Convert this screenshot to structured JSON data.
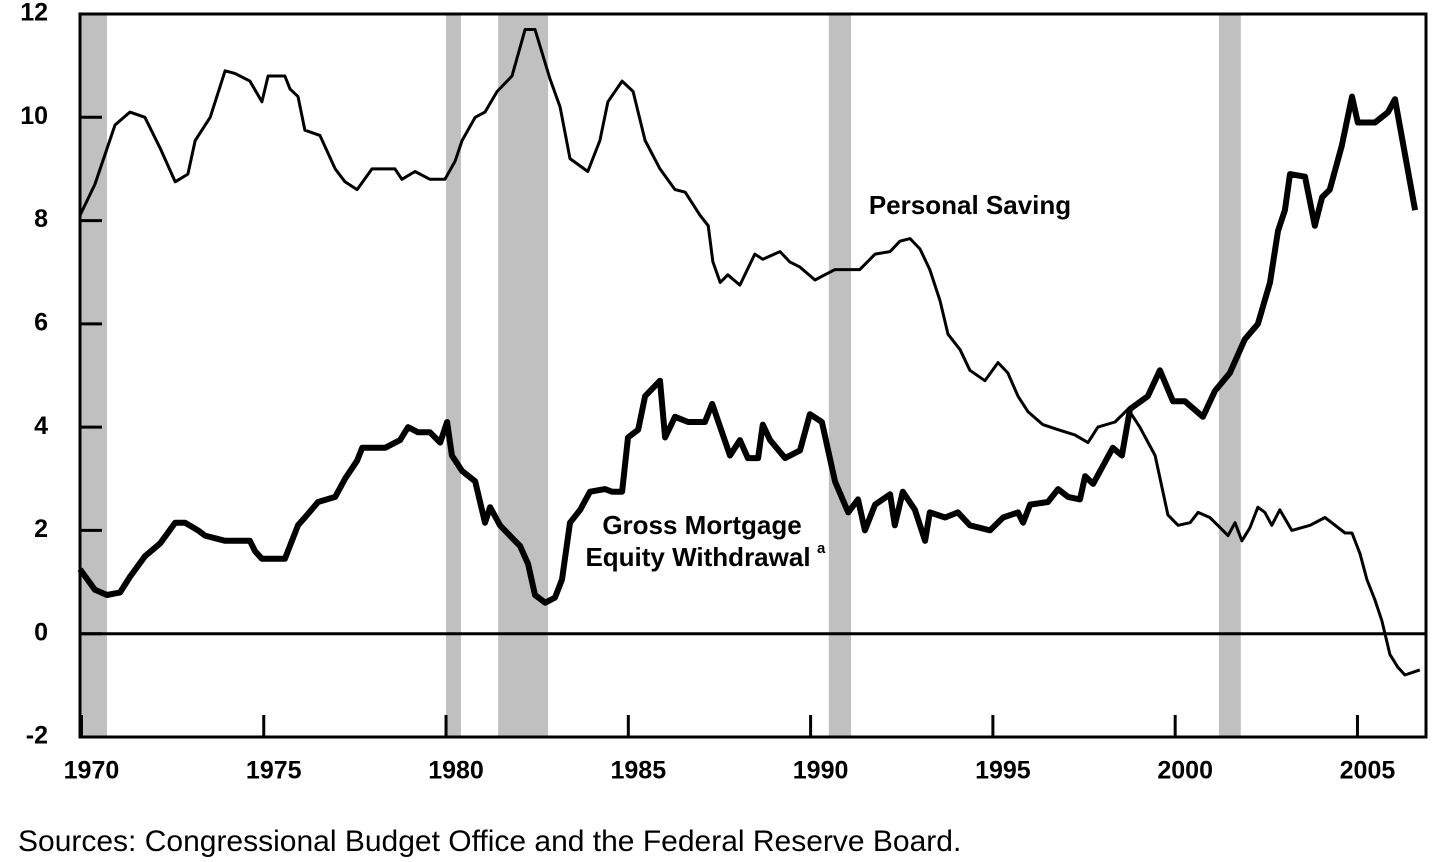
{
  "chart_data": {
    "type": "line",
    "annotations": [
      "Personal Saving",
      "Gross Mortgage",
      "Equity Withdrawal",
      "a"
    ],
    "source": "Sources: Congressional Budget Office and the Federal Reserve Board.",
    "xlim": [
      1969.96,
      2006.88
    ],
    "xticks": [
      1970,
      1975,
      1980,
      1985,
      1990,
      1995,
      2000,
      2005
    ],
    "ylim": [
      -2,
      12
    ],
    "yticks": [
      -2,
      0,
      2,
      4,
      6,
      8,
      10,
      12
    ],
    "grid": false,
    "recessions": [
      [
        1969.96,
        1970.7
      ],
      [
        1980.0,
        1980.41
      ],
      [
        1981.43,
        1982.8
      ],
      [
        1990.5,
        1991.11
      ],
      [
        2001.2,
        2001.8
      ]
    ],
    "recession_color": "#c0c0c0",
    "series": [
      {
        "color": "#000000",
        "width": 3,
        "x": [
          1969.96,
          1970.37,
          1970.92,
          1971.33,
          1971.74,
          1972.16,
          1972.57,
          1972.92,
          1973.12,
          1973.53,
          1973.94,
          1974.21,
          1974.62,
          1974.95,
          1975.12,
          1975.58,
          1975.72,
          1975.94,
          1976.13,
          1976.54,
          1976.96,
          1977.23,
          1977.56,
          1977.97,
          1978.6,
          1978.79,
          1979.15,
          1979.56,
          1979.97,
          1980.25,
          1980.44,
          1980.8,
          1981.07,
          1981.4,
          1981.81,
          1982.17,
          1982.44,
          1982.85,
          1983.13,
          1983.4,
          1983.89,
          1984.22,
          1984.44,
          1984.83,
          1985.13,
          1985.46,
          1985.87,
          1986.28,
          1986.56,
          1986.97,
          1987.19,
          1987.32,
          1987.52,
          1987.73,
          1988.06,
          1988.47,
          1988.69,
          1989.16,
          1989.43,
          1989.71,
          1990.12,
          1990.39,
          1990.67,
          1991.35,
          1991.77,
          1992.18,
          1992.45,
          1992.73,
          1993.0,
          1993.27,
          1993.55,
          1993.77,
          1994.1,
          1994.37,
          1994.78,
          1995.14,
          1995.41,
          1995.69,
          1995.96,
          1996.37,
          1996.79,
          1997.25,
          1997.61,
          1997.88,
          1998.35,
          1998.71,
          1999.03,
          1999.45,
          1999.8,
          2000.08,
          2000.41,
          2000.63,
          2000.95,
          2001.17,
          2001.45,
          2001.64,
          2001.83,
          2002.05,
          2002.27,
          2002.46,
          2002.65,
          2002.87,
          2003.2,
          2003.7,
          2004.11,
          2004.66,
          2004.85,
          2005.07,
          2005.26,
          2005.48,
          2005.67,
          2005.89,
          2006.11,
          2006.3,
          2006.71
        ],
        "values": [
          8.1,
          8.7,
          9.85,
          10.1,
          10.0,
          9.4,
          8.75,
          8.9,
          9.55,
          10.0,
          10.9,
          10.85,
          10.7,
          10.3,
          10.8,
          10.8,
          10.55,
          10.4,
          9.75,
          9.65,
          9.0,
          8.75,
          8.6,
          9.0,
          9.0,
          8.8,
          8.95,
          8.8,
          8.8,
          9.15,
          9.55,
          10.0,
          10.1,
          10.5,
          10.8,
          11.7,
          11.7,
          10.75,
          10.2,
          9.2,
          8.95,
          9.55,
          10.3,
          10.7,
          10.5,
          9.55,
          9.0,
          8.6,
          8.55,
          8.1,
          7.9,
          7.2,
          6.8,
          6.95,
          6.75,
          7.35,
          7.25,
          7.4,
          7.2,
          7.1,
          6.85,
          6.95,
          7.05,
          7.05,
          7.35,
          7.4,
          7.6,
          7.65,
          7.45,
          7.05,
          6.45,
          5.8,
          5.5,
          5.1,
          4.9,
          5.25,
          5.05,
          4.6,
          4.3,
          4.05,
          3.95,
          3.85,
          3.7,
          4.0,
          4.1,
          4.35,
          4.0,
          3.45,
          2.3,
          2.1,
          2.15,
          2.35,
          2.25,
          2.1,
          1.9,
          2.15,
          1.8,
          2.05,
          2.45,
          2.35,
          2.1,
          2.4,
          2.0,
          2.1,
          2.25,
          1.95,
          1.95,
          1.55,
          1.05,
          0.65,
          0.25,
          -0.4,
          -0.65,
          -0.8,
          -0.7
        ]
      },
      {
        "color": "#000000",
        "width": 6,
        "x": [
          1969.96,
          1970.37,
          1970.7,
          1971.06,
          1971.33,
          1971.74,
          1972.16,
          1972.57,
          1972.84,
          1973.2,
          1973.39,
          1973.94,
          1974.62,
          1974.76,
          1974.95,
          1975.58,
          1975.94,
          1976.13,
          1976.49,
          1976.96,
          1977.23,
          1977.56,
          1977.7,
          1978.33,
          1978.74,
          1978.96,
          1979.23,
          1979.56,
          1979.84,
          1980.03,
          1980.16,
          1980.44,
          1980.8,
          1981.07,
          1981.21,
          1981.48,
          1981.89,
          1982.03,
          1982.25,
          1982.44,
          1982.72,
          1982.99,
          1983.18,
          1983.4,
          1983.68,
          1983.95,
          1984.36,
          1984.55,
          1984.83,
          1984.99,
          1985.27,
          1985.46,
          1985.87,
          1986.01,
          1986.28,
          1986.64,
          1987.1,
          1987.3,
          1987.52,
          1987.79,
          1988.06,
          1988.28,
          1988.56,
          1988.69,
          1988.89,
          1989.3,
          1989.71,
          1989.98,
          1990.31,
          1990.67,
          1991.03,
          1991.3,
          1991.49,
          1991.77,
          1992.18,
          1992.31,
          1992.53,
          1992.86,
          1993.14,
          1993.27,
          1993.69,
          1994.04,
          1994.37,
          1994.92,
          1995.28,
          1995.69,
          1995.83,
          1996.02,
          1996.51,
          1996.79,
          1997.06,
          1997.39,
          1997.53,
          1997.75,
          1998.29,
          1998.54,
          1998.76,
          1999.25,
          1999.58,
          1999.94,
          2000.27,
          2000.76,
          2001.09,
          2001.5,
          2001.91,
          2002.27,
          2002.6,
          2002.82,
          2003.01,
          2003.15,
          2003.56,
          2003.83,
          2004.03,
          2004.24,
          2004.57,
          2004.85,
          2005.01,
          2005.48,
          2005.84,
          2006.03,
          2006.58
        ],
        "values": [
          1.25,
          0.85,
          0.75,
          0.8,
          1.1,
          1.5,
          1.75,
          2.15,
          2.15,
          2.0,
          1.9,
          1.8,
          1.8,
          1.6,
          1.45,
          1.45,
          2.1,
          2.25,
          2.55,
          2.65,
          3.0,
          3.35,
          3.6,
          3.6,
          3.75,
          4.0,
          3.9,
          3.9,
          3.7,
          4.1,
          3.45,
          3.15,
          2.95,
          2.15,
          2.45,
          2.1,
          1.8,
          1.7,
          1.35,
          0.75,
          0.6,
          0.7,
          1.05,
          2.15,
          2.4,
          2.75,
          2.8,
          2.75,
          2.75,
          3.8,
          3.95,
          4.6,
          4.9,
          3.8,
          4.2,
          4.1,
          4.1,
          4.45,
          4.0,
          3.45,
          3.75,
          3.4,
          3.4,
          4.05,
          3.75,
          3.4,
          3.55,
          4.25,
          4.1,
          2.95,
          2.35,
          2.6,
          2.0,
          2.5,
          2.7,
          2.1,
          2.75,
          2.4,
          1.8,
          2.35,
          2.25,
          2.35,
          2.1,
          2.0,
          2.25,
          2.35,
          2.15,
          2.5,
          2.55,
          2.8,
          2.65,
          2.6,
          3.05,
          2.9,
          3.6,
          3.45,
          4.35,
          4.6,
          5.1,
          4.5,
          4.5,
          4.2,
          4.7,
          5.05,
          5.7,
          6.0,
          6.8,
          7.8,
          8.2,
          8.9,
          8.85,
          7.9,
          8.45,
          8.6,
          9.45,
          10.4,
          9.9,
          9.9,
          10.1,
          10.35,
          8.2
        ]
      }
    ]
  }
}
